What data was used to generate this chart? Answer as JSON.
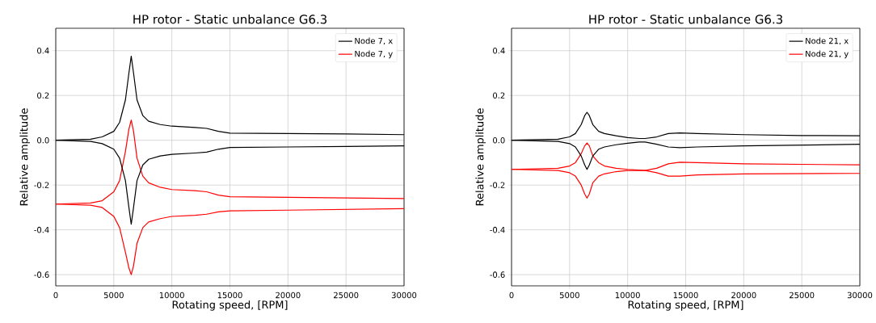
{
  "chart_data": [
    {
      "type": "line",
      "title": "HP rotor - Static unbalance G6.3",
      "xlabel": "Rotating speed, [RPM]",
      "ylabel": "Relative amplitude",
      "xlim": [
        0,
        30000
      ],
      "ylim": [
        -0.65,
        0.5
      ],
      "xticks": [
        0,
        5000,
        10000,
        15000,
        20000,
        25000,
        30000
      ],
      "yticks": [
        {
          "value": -0.6,
          "label": "-0.6"
        },
        {
          "value": -0.4,
          "label": "-0.4"
        },
        {
          "value": -0.2,
          "label": "-0.2"
        },
        {
          "value": 0,
          "label": "0.0"
        },
        {
          "value": 0.2,
          "label": "0.2"
        },
        {
          "value": 0.4,
          "label": "0.4"
        }
      ],
      "grid": true,
      "legend": "top right",
      "marker": "none",
      "line_style": "solid",
      "series": [
        {
          "name": "Node 7, x",
          "color": "#000000",
          "x": [
            0,
            3000,
            4000,
            5000,
            5500,
            6000,
            6300,
            6500,
            6700,
            7000,
            7500,
            8000,
            9000,
            10000,
            12000,
            13000,
            14000,
            15000,
            20000,
            25000,
            30000
          ],
          "values": [
            0,
            0.005,
            0.015,
            0.04,
            0.08,
            0.18,
            0.3,
            0.375,
            0.3,
            0.18,
            0.11,
            0.085,
            0.07,
            0.063,
            0.057,
            0.053,
            0.04,
            0.032,
            0.03,
            0.028,
            0.025
          ]
        },
        {
          "name": "Node 7, y",
          "color": "#ff0000",
          "x": [
            0,
            3000,
            4000,
            5000,
            5500,
            6000,
            6300,
            6500,
            6700,
            7000,
            7500,
            8000,
            9000,
            10000,
            12000,
            13000,
            14000,
            15000,
            20000,
            30000
          ],
          "values": [
            -0.285,
            -0.28,
            -0.27,
            -0.23,
            -0.18,
            -0.05,
            0.05,
            0.09,
            0.04,
            -0.08,
            -0.16,
            -0.19,
            -0.21,
            -0.22,
            -0.225,
            -0.23,
            -0.245,
            -0.252,
            -0.255,
            -0.26
          ]
        },
        {
          "color": "#000000",
          "x": [
            0,
            3000,
            4000,
            5000,
            5500,
            6000,
            6300,
            6500,
            6700,
            7000,
            7500,
            8000,
            9000,
            10000,
            12000,
            13000,
            14000,
            15000,
            20000,
            25000,
            30000
          ],
          "values": [
            0,
            -0.005,
            -0.015,
            -0.04,
            -0.08,
            -0.18,
            -0.3,
            -0.375,
            -0.3,
            -0.18,
            -0.11,
            -0.085,
            -0.07,
            -0.063,
            -0.057,
            -0.053,
            -0.04,
            -0.032,
            -0.03,
            -0.028,
            -0.025
          ]
        },
        {
          "color": "#ff0000",
          "x": [
            0,
            3000,
            4000,
            5000,
            5500,
            6000,
            6300,
            6500,
            6700,
            7000,
            7500,
            8000,
            9000,
            10000,
            12000,
            13000,
            14000,
            15000,
            20000,
            30000
          ],
          "values": [
            -0.285,
            -0.29,
            -0.3,
            -0.34,
            -0.39,
            -0.5,
            -0.57,
            -0.6,
            -0.56,
            -0.46,
            -0.39,
            -0.365,
            -0.35,
            -0.34,
            -0.335,
            -0.33,
            -0.32,
            -0.315,
            -0.312,
            -0.305
          ]
        }
      ]
    },
    {
      "type": "line",
      "title": "HP rotor - Static unbalance G6.3",
      "xlabel": "Rotating speed, [RPM]",
      "ylabel": "Relative amplitude",
      "xlim": [
        0,
        30000
      ],
      "ylim": [
        -0.65,
        0.5
      ],
      "xticks": [
        0,
        5000,
        10000,
        15000,
        20000,
        25000,
        30000
      ],
      "yticks": [
        {
          "value": -0.6,
          "label": "-0.6"
        },
        {
          "value": -0.4,
          "label": "-0.4"
        },
        {
          "value": -0.2,
          "label": "-0.2"
        },
        {
          "value": 0,
          "label": "0.0"
        },
        {
          "value": 0.2,
          "label": "0.2"
        },
        {
          "value": 0.4,
          "label": "0.4"
        }
      ],
      "grid": true,
      "legend": "top right",
      "marker": "none",
      "line_style": "solid",
      "series": [
        {
          "name": "Node 21, x",
          "color": "#000000",
          "x": [
            0,
            4000,
            5000,
            5500,
            6000,
            6300,
            6500,
            6700,
            7000,
            7500,
            8000,
            9000,
            10000,
            11000,
            11500,
            12500,
            13500,
            14500,
            16000,
            20000,
            25000,
            30000
          ],
          "values": [
            0,
            0.005,
            0.015,
            0.03,
            0.07,
            0.11,
            0.125,
            0.11,
            0.07,
            0.04,
            0.03,
            0.02,
            0.012,
            0.008,
            0.008,
            0.015,
            0.03,
            0.033,
            0.03,
            0.025,
            0.021,
            0.02
          ]
        },
        {
          "name": "Node 21, y",
          "color": "#ff0000",
          "x": [
            0,
            4000,
            5000,
            5500,
            6000,
            6300,
            6500,
            6700,
            7000,
            7500,
            8000,
            9000,
            10000,
            11500,
            12500,
            13500,
            14500,
            16000,
            20000,
            30000
          ],
          "values": [
            -0.13,
            -0.125,
            -0.115,
            -0.1,
            -0.06,
            -0.025,
            -0.012,
            -0.025,
            -0.07,
            -0.1,
            -0.115,
            -0.125,
            -0.13,
            -0.135,
            -0.125,
            -0.105,
            -0.098,
            -0.1,
            -0.105,
            -0.11
          ]
        },
        {
          "color": "#000000",
          "x": [
            0,
            4000,
            5000,
            5500,
            6000,
            6300,
            6500,
            6700,
            7000,
            7500,
            8000,
            9000,
            10000,
            11000,
            11500,
            12500,
            13500,
            14500,
            16000,
            20000,
            30000
          ],
          "values": [
            0,
            -0.005,
            -0.015,
            -0.03,
            -0.07,
            -0.11,
            -0.13,
            -0.11,
            -0.07,
            -0.04,
            -0.03,
            -0.02,
            -0.013,
            -0.008,
            -0.008,
            -0.018,
            -0.03,
            -0.033,
            -0.03,
            -0.025,
            -0.018
          ]
        },
        {
          "color": "#ff0000",
          "x": [
            0,
            4000,
            5000,
            5500,
            6000,
            6300,
            6500,
            6700,
            7000,
            7500,
            8000,
            9000,
            10000,
            11500,
            12500,
            13500,
            14500,
            16000,
            20000,
            30000
          ],
          "values": [
            -0.13,
            -0.135,
            -0.145,
            -0.16,
            -0.2,
            -0.24,
            -0.258,
            -0.24,
            -0.19,
            -0.16,
            -0.15,
            -0.14,
            -0.135,
            -0.135,
            -0.145,
            -0.16,
            -0.16,
            -0.155,
            -0.15,
            -0.148
          ]
        }
      ]
    }
  ]
}
